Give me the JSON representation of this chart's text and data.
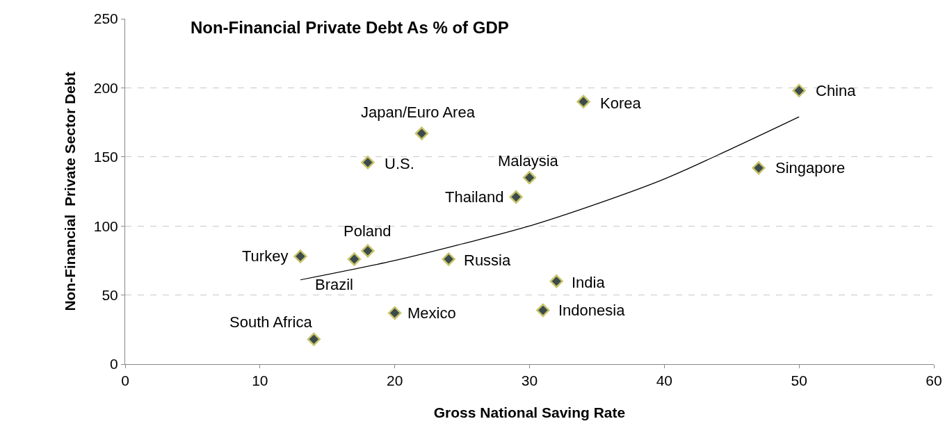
{
  "chart_data": {
    "type": "scatter",
    "title": "Non-Financial Private Debt As % of GDP",
    "xlabel": "Gross National Saving Rate",
    "ylabel": "Non-Financial  Private Sector Debt",
    "xlim": [
      0,
      60
    ],
    "xticks": [
      0,
      10,
      20,
      30,
      40,
      50,
      60
    ],
    "ylim": [
      0,
      250
    ],
    "yticks": [
      0,
      50,
      100,
      150,
      200,
      250
    ],
    "grid": "y",
    "marker": "diamond",
    "series": [
      {
        "color": "#3b4b4b",
        "x": [
          50,
          34,
          22,
          18,
          30,
          29,
          47,
          18,
          13,
          17,
          24,
          32,
          31,
          20,
          14
        ],
        "values": [
          198,
          190,
          167,
          146,
          135,
          121,
          142,
          82,
          78,
          76,
          76,
          60,
          39,
          37,
          18
        ]
      },
      {
        "type": "line",
        "marker": "none",
        "color": "#000000",
        "x": [
          13,
          20,
          25,
          30,
          35,
          40,
          45,
          50
        ],
        "values": [
          61,
          75,
          87,
          100,
          116,
          134,
          156,
          179
        ]
      }
    ],
    "annotations": [
      {
        "text": "China",
        "x": 50,
        "y": 198
      },
      {
        "text": "Korea",
        "x": 34,
        "y": 190
      },
      {
        "text": "Japan/Euro Area",
        "x": 22,
        "y": 167
      },
      {
        "text": "U.S.",
        "x": 18,
        "y": 146
      },
      {
        "text": "Malaysia",
        "x": 30,
        "y": 135
      },
      {
        "text": "Thailand",
        "x": 29,
        "y": 121
      },
      {
        "text": "Singapore",
        "x": 47,
        "y": 142
      },
      {
        "text": "Poland",
        "x": 18,
        "y": 82
      },
      {
        "text": "Turkey",
        "x": 13,
        "y": 78
      },
      {
        "text": "Brazil",
        "x": 17,
        "y": 76
      },
      {
        "text": "Russia",
        "x": 24,
        "y": 76
      },
      {
        "text": "India",
        "x": 32,
        "y": 60
      },
      {
        "text": "Indonesia",
        "x": 31,
        "y": 39
      },
      {
        "text": "Mexico",
        "x": 20,
        "y": 37
      },
      {
        "text": "South Africa",
        "x": 14,
        "y": 18
      }
    ]
  }
}
